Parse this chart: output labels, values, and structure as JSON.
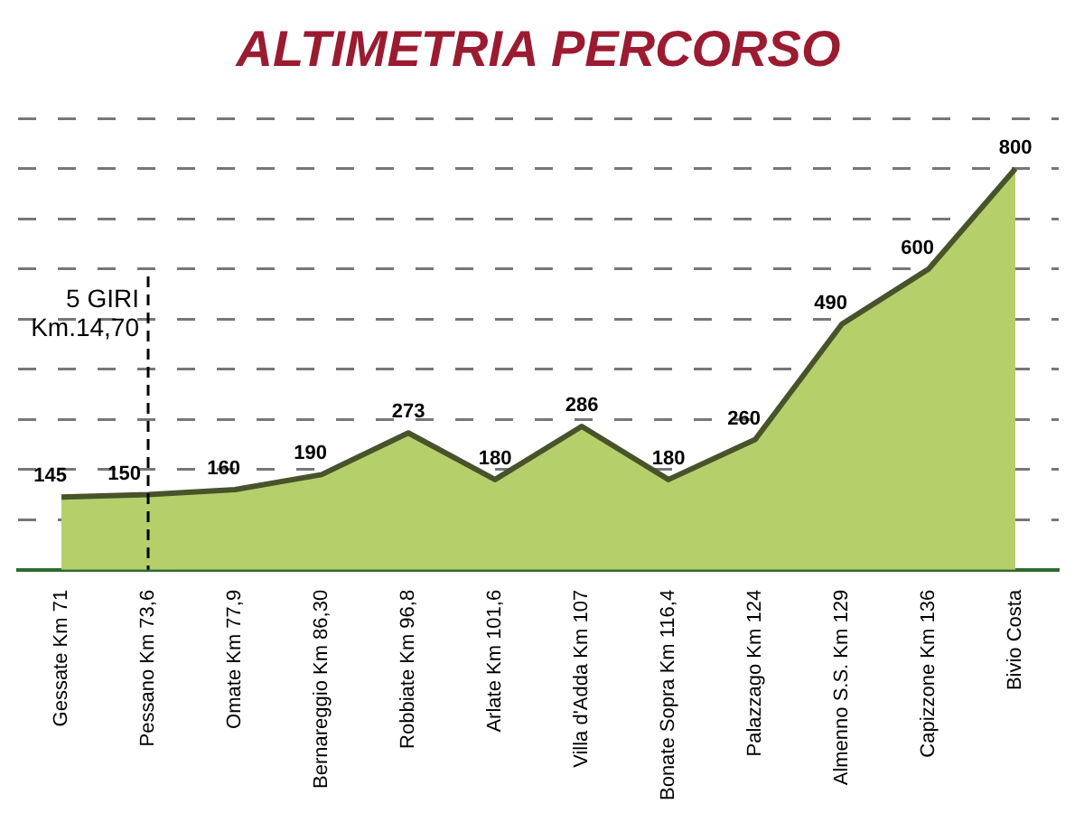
{
  "chart_data": {
    "type": "area",
    "title": "ALTIMETRIA PERCORSO",
    "categories": [
      "Gessate Km 71",
      "Pessano Km 73,6",
      "Omate Km 77,9",
      "Bernareggio Km 86,30",
      "Robbiate Km 96,8",
      "Arlate Km 101,6",
      "Villa d'Adda Km 107",
      "Bonate Sopra Km 116,4",
      "Palazzago Km 124",
      "Almenno S.S. Km 129",
      "Capizzone Km 136",
      "Bivio Costa"
    ],
    "values": [
      145,
      150,
      160,
      190,
      273,
      180,
      286,
      180,
      260,
      490,
      600,
      800
    ],
    "color": "#b5cf6b",
    "data_labels": true,
    "grid": "y",
    "marker": "none",
    "ref_lines": [
      {
        "axis": "x",
        "value": "Pessano Km 73,6",
        "label": "5 GIRI Km.14,70",
        "color": "#000000",
        "line_style": "dashed"
      }
    ]
  }
}
